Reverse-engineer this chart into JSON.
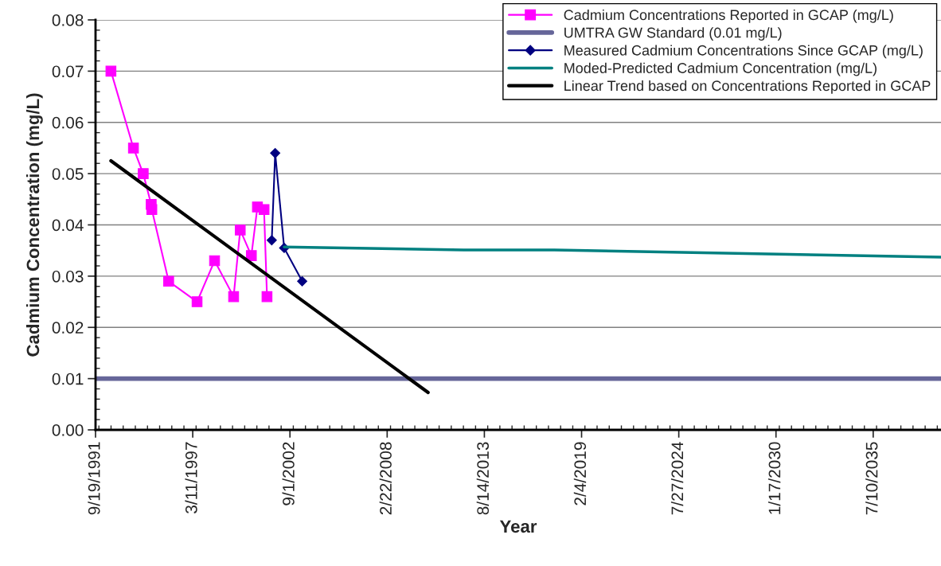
{
  "chart_data": {
    "type": "line",
    "xlabel": "Year",
    "ylabel": "Cadmium Concentration (mg/L)",
    "xlim": [
      "1991-09-19",
      "2039-05-05"
    ],
    "xticks": [
      {
        "value": "1991-09-19",
        "label": "9/19/1991"
      },
      {
        "value": "1997-03-11",
        "label": "3/11/1997"
      },
      {
        "value": "2002-09-01",
        "label": "9/1/2002"
      },
      {
        "value": "2008-02-22",
        "label": "2/22/2008"
      },
      {
        "value": "2013-08-14",
        "label": "8/14/2013"
      },
      {
        "value": "2019-02-04",
        "label": "2/4/2019"
      },
      {
        "value": "2024-07-27",
        "label": "7/27/2024"
      },
      {
        "value": "2030-01-17",
        "label": "1/17/2030"
      },
      {
        "value": "2035-07-10",
        "label": "7/10/2035"
      }
    ],
    "ylim": [
      0,
      0.08
    ],
    "yticks": [
      {
        "value": 0,
        "label": "0.00"
      },
      {
        "value": 0.01,
        "label": "0.01"
      },
      {
        "value": 0.02,
        "label": "0.02"
      },
      {
        "value": 0.03,
        "label": "0.03"
      },
      {
        "value": 0.04,
        "label": "0.04"
      },
      {
        "value": 0.05,
        "label": "0.05"
      },
      {
        "value": 0.06,
        "label": "0.06"
      },
      {
        "value": 0.07,
        "label": "0.07"
      },
      {
        "value": 0.08,
        "label": "0.08"
      }
    ],
    "grid": "y",
    "legend": "top right",
    "series": [
      {
        "name": "Cadmium Concentrations Reported in GCAP (mg/L)",
        "color": "#ff00ff",
        "marker": "square",
        "x": [
          "1992-08-01",
          "1993-11-07",
          "1994-05-27",
          "1994-11-07",
          "1994-11-20",
          "1995-11-01",
          "1997-06-08",
          "1998-06-03",
          "1999-06-30",
          "1999-11-13",
          "2000-06-29",
          "2000-11-01",
          "2001-03-17",
          "2001-05-17"
        ],
        "values": [
          0.07,
          0.055,
          0.05,
          0.044,
          0.043,
          0.029,
          0.025,
          0.033,
          0.026,
          0.039,
          0.034,
          0.0435,
          0.043,
          0.026
        ]
      },
      {
        "name": "Measured Cadmium Concentrations Since GCAP (mg/L)",
        "color": "#000080",
        "marker": "diamond",
        "x": [
          "2001-08-23",
          "2001-11-01",
          "2002-05-05",
          "2003-05-11"
        ],
        "values": [
          0.037,
          0.054,
          0.0355,
          0.029
        ]
      },
      {
        "name": "Moded-Predicted Cadmium Concentration (mg/L)",
        "color": "#008080",
        "x": [
          "2002-05-05",
          "2012-06-12",
          "2017-07-25",
          "2039-05-05"
        ],
        "values": [
          0.0357,
          0.0351,
          0.0351,
          0.0337
        ]
      },
      {
        "name": "Linear Trend based on Concentrations Reported in GCAP",
        "color": "#000000",
        "x": [
          "1992-08-01",
          "2010-06-13"
        ],
        "values": [
          0.0525,
          0.0073
        ]
      }
    ],
    "ref_lines": [
      {
        "axis": "y",
        "value": 0.01,
        "label": "UMTRA GW Standard (0.01 mg/L)",
        "color": "#666699"
      }
    ]
  }
}
